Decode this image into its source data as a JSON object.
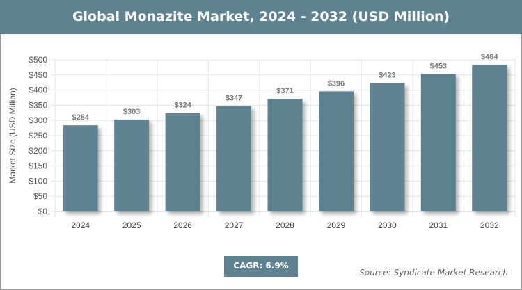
{
  "chart_data": {
    "type": "bar",
    "title": "Global Monazite Market, 2024 - 2032 (USD Million)",
    "xlabel": "",
    "ylabel": "Market Size (USD Million)",
    "categories": [
      "2024",
      "2025",
      "2026",
      "2027",
      "2028",
      "2029",
      "2030",
      "2031",
      "2032"
    ],
    "values": [
      284,
      303,
      324,
      347,
      371,
      396,
      423,
      453,
      484
    ],
    "data_labels": [
      "$284",
      "$303",
      "$324",
      "$347",
      "$371",
      "$396",
      "$423",
      "$453",
      "$484"
    ],
    "ylim": [
      0,
      500
    ],
    "yticks": [
      0,
      50,
      100,
      150,
      200,
      250,
      300,
      350,
      400,
      450,
      500
    ],
    "ytick_labels": [
      "$0",
      "$50",
      "$100",
      "$150",
      "$200",
      "$250",
      "$300",
      "$350",
      "$400",
      "$450",
      "$500"
    ],
    "grid": true,
    "bar_color": "#5f8291"
  },
  "cagr": "CAGR: 6.9%",
  "source": "Source: Syndicate Market Research"
}
